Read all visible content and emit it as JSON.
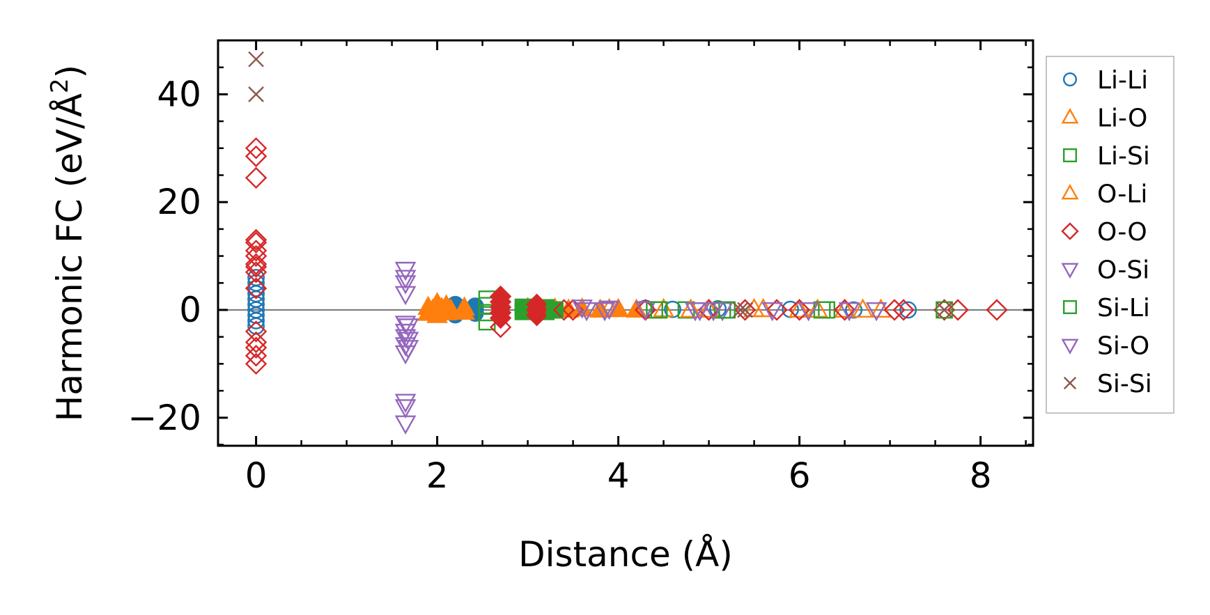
{
  "chart_data": {
    "type": "scatter",
    "xlabel": "Distance (Å)",
    "ylabel_main": "Harmonic FC (eV/Å",
    "ylabel_sup": "2",
    "ylabel_close": ")",
    "xlim": [
      -0.42,
      8.58
    ],
    "ylim": [
      -25.2,
      50
    ],
    "x_ticks": [
      0,
      2,
      4,
      6,
      8
    ],
    "x_tick_labels": [
      "0",
      "2",
      "4",
      "6",
      "8"
    ],
    "y_ticks": [
      -20,
      0,
      20,
      40
    ],
    "y_tick_labels": [
      "−20",
      "0",
      "20",
      "40"
    ],
    "x_minor_step": 0.5,
    "y_minor_step": 5,
    "zero_line": true,
    "grid": false,
    "legend_position": "outside-right",
    "series": [
      {
        "name": "Li-Li",
        "marker": "circle",
        "filled_points": [
          [
            2.2,
            1.0
          ],
          [
            2.2,
            0.0
          ],
          [
            2.2,
            -0.9
          ],
          [
            2.42,
            0.7
          ],
          [
            2.42,
            0.0
          ],
          [
            2.42,
            -0.6
          ]
        ],
        "points": [
          [
            0,
            6
          ],
          [
            0,
            5
          ],
          [
            0,
            4
          ],
          [
            0,
            3
          ],
          [
            0,
            2
          ],
          [
            0,
            1
          ],
          [
            0,
            0
          ],
          [
            0,
            -1
          ],
          [
            0,
            -2
          ],
          [
            0,
            -3
          ],
          [
            4.3,
            0.3
          ],
          [
            4.6,
            0.1
          ],
          [
            5.1,
            0.2
          ],
          [
            5.9,
            0.1
          ],
          [
            6.6,
            0.0
          ],
          [
            7.2,
            0.0
          ]
        ]
      },
      {
        "name": "Li-O",
        "marker": "triangle-up",
        "filled_points": [
          [
            1.9,
            0.5
          ],
          [
            1.9,
            -0.6
          ],
          [
            1.95,
            0.0
          ],
          [
            2.0,
            1.2
          ],
          [
            2.0,
            -1.0
          ],
          [
            2.05,
            0.3
          ],
          [
            2.1,
            0.8
          ],
          [
            2.1,
            -0.5
          ],
          [
            2.15,
            0.0
          ],
          [
            2.3,
            0.4
          ],
          [
            2.3,
            -0.4
          ],
          [
            3.0,
            0.3
          ],
          [
            3.1,
            0.0
          ],
          [
            3.3,
            0.2
          ],
          [
            3.45,
            0.0
          ],
          [
            3.6,
            0.2
          ],
          [
            3.8,
            0.0
          ],
          [
            4.0,
            0.1
          ],
          [
            4.2,
            0.0
          ]
        ],
        "points": [
          [
            4.5,
            0.1
          ],
          [
            5.0,
            0.0
          ],
          [
            5.6,
            0.1
          ],
          [
            6.0,
            0.0
          ],
          [
            6.5,
            0.0
          ],
          [
            6.9,
            0.0
          ]
        ]
      },
      {
        "name": "Li-Si",
        "marker": "square",
        "filled_points": [
          [
            2.95,
            0.5
          ],
          [
            2.95,
            -0.3
          ],
          [
            3.2,
            0.4
          ],
          [
            3.2,
            -0.3
          ],
          [
            3.3,
            0.0
          ]
        ],
        "points": [
          [
            2.55,
            2.0
          ],
          [
            2.55,
            0.8
          ],
          [
            2.55,
            -0.5
          ],
          [
            2.55,
            -2.2
          ],
          [
            4.4,
            0.0
          ],
          [
            4.75,
            0.0
          ],
          [
            5.15,
            0.0
          ],
          [
            6.3,
            0.0
          ]
        ]
      },
      {
        "name": "O-Li",
        "marker": "triangle-up",
        "filled_points": [],
        "points": [
          [
            3.9,
            0.1
          ],
          [
            4.8,
            0.0
          ],
          [
            5.5,
            0.1
          ],
          [
            6.2,
            0.0
          ],
          [
            6.7,
            0.0
          ]
        ]
      },
      {
        "name": "O-O",
        "marker": "diamond",
        "filled_points": [
          [
            2.7,
            2.5
          ],
          [
            2.7,
            1.5
          ],
          [
            2.7,
            0.5
          ],
          [
            2.7,
            -0.5
          ],
          [
            2.7,
            -1.5
          ],
          [
            3.1,
            1.0
          ],
          [
            3.1,
            0.0
          ],
          [
            3.1,
            -1.0
          ]
        ],
        "points": [
          [
            0,
            30
          ],
          [
            0,
            28.5
          ],
          [
            0,
            24.5
          ],
          [
            0,
            13
          ],
          [
            0,
            12.5
          ],
          [
            0,
            11
          ],
          [
            0,
            10
          ],
          [
            0,
            8.5
          ],
          [
            0,
            8
          ],
          [
            0,
            7
          ],
          [
            0,
            4
          ],
          [
            0,
            -4
          ],
          [
            0,
            -6
          ],
          [
            0,
            -7
          ],
          [
            0,
            -8.5
          ],
          [
            0,
            -10
          ],
          [
            2.7,
            -3.2
          ],
          [
            3.4,
            0.0
          ],
          [
            3.5,
            0.0
          ],
          [
            4.3,
            0.0
          ],
          [
            5.0,
            0.0
          ],
          [
            5.4,
            0.0
          ],
          [
            5.75,
            0.0
          ],
          [
            6.0,
            0.0
          ],
          [
            6.5,
            0.0
          ],
          [
            7.05,
            0.0
          ],
          [
            7.15,
            0.0
          ],
          [
            7.6,
            0.0
          ],
          [
            7.75,
            0.0
          ],
          [
            8.18,
            0.0
          ]
        ]
      },
      {
        "name": "O-Si",
        "marker": "triangle-down",
        "filled_points": [],
        "points": [
          [
            1.65,
            7.5
          ],
          [
            1.65,
            6
          ],
          [
            1.65,
            5
          ],
          [
            1.65,
            3
          ],
          [
            1.65,
            -2.5
          ],
          [
            1.65,
            -4
          ],
          [
            1.65,
            -5
          ],
          [
            1.65,
            -6.5
          ],
          [
            1.65,
            -8
          ],
          [
            1.65,
            -17
          ],
          [
            1.65,
            -18
          ],
          [
            1.65,
            -21
          ],
          [
            3.6,
            0.5
          ],
          [
            3.85,
            0.0
          ],
          [
            4.3,
            0.2
          ],
          [
            4.85,
            0.0
          ],
          [
            5.15,
            0.0
          ],
          [
            5.7,
            0.0
          ]
        ]
      },
      {
        "name": "Si-Li",
        "marker": "square",
        "filled_points": [],
        "points": [
          [
            3.3,
            0.0
          ],
          [
            4.45,
            0.0
          ],
          [
            5.2,
            0.0
          ],
          [
            6.25,
            0.0
          ],
          [
            7.6,
            0.0
          ]
        ]
      },
      {
        "name": "Si-O",
        "marker": "triangle-down",
        "filled_points": [],
        "points": [
          [
            1.68,
            -3
          ],
          [
            1.68,
            -5.5
          ],
          [
            1.68,
            -7
          ],
          [
            3.65,
            0.0
          ],
          [
            3.9,
            0.3
          ],
          [
            4.9,
            0.0
          ],
          [
            5.05,
            0.0
          ],
          [
            6.1,
            0.0
          ],
          [
            6.55,
            0.0
          ],
          [
            6.85,
            0.0
          ]
        ]
      },
      {
        "name": "Si-Si",
        "marker": "x",
        "filled_points": [],
        "points": [
          [
            0,
            46.5
          ],
          [
            0,
            40
          ],
          [
            5.35,
            0.0
          ],
          [
            5.4,
            0.0
          ],
          [
            7.6,
            0.0
          ]
        ]
      }
    ],
    "colors": {
      "Li-Li": "#1f77b4",
      "Li-O": "#ff7f0e",
      "Li-Si": "#2ca02c",
      "O-Li": "#ff7f0e",
      "O-O": "#d62728",
      "O-Si": "#9467bd",
      "Si-Li": "#2ca02c",
      "Si-O": "#9467bd",
      "Si-Si": "#8c564b"
    }
  }
}
